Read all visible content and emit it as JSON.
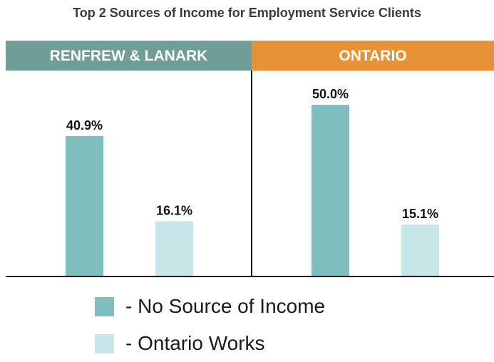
{
  "colors": {
    "renfrew_header": "#6f9e96",
    "ontario_header": "#e89235",
    "no_source": "#7fbdbe",
    "ontario_works": "#c7e6e8"
  },
  "chart_data": {
    "type": "bar",
    "title": "Top 2 Sources of Income for Employment Service Clients",
    "panels": [
      {
        "name": "RENFREW & LANARK",
        "values": [
          40.9,
          16.1
        ],
        "labels": [
          "40.9%",
          "16.1%"
        ]
      },
      {
        "name": "ONTARIO",
        "values": [
          50.0,
          15.1
        ],
        "labels": [
          "50.0%",
          "15.1%"
        ]
      }
    ],
    "series": [
      {
        "name": "- No Source of Income"
      },
      {
        "name": "- Ontario Works"
      }
    ],
    "ylim": [
      0,
      50
    ],
    "grid": false,
    "legend": "bottom"
  }
}
